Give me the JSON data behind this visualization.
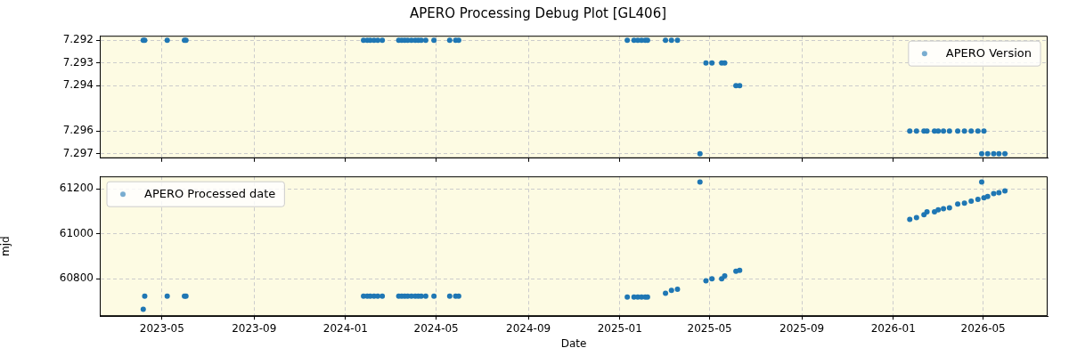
{
  "chart_data": [
    {
      "type": "scatter",
      "title": "APERO Processing Debug Plot [GL406]",
      "x": [
        "2023-04-06",
        "2023-04-08",
        "2023-05-08",
        "2023-05-31",
        "2023-06-02",
        "2024-01-25",
        "2024-01-30",
        "2024-02-03",
        "2024-02-08",
        "2024-02-13",
        "2024-02-19",
        "2024-03-12",
        "2024-03-16",
        "2024-03-20",
        "2024-03-24",
        "2024-03-29",
        "2024-04-03",
        "2024-04-07",
        "2024-04-11",
        "2024-04-17",
        "2024-04-28",
        "2024-05-19",
        "2024-05-27",
        "2024-05-31",
        "2025-01-11",
        "2025-01-20",
        "2025-01-25",
        "2025-01-30",
        "2025-02-04",
        "2025-02-07",
        "2025-03-03",
        "2025-03-11",
        "2025-03-19",
        "2025-04-18",
        "2025-04-26",
        "2025-05-04",
        "2025-05-17",
        "2025-05-21",
        "2025-06-05",
        "2025-06-10",
        "2026-01-23",
        "2026-02-01",
        "2026-02-11",
        "2026-02-15",
        "2026-02-25",
        "2026-03-02",
        "2026-03-09",
        "2026-03-17",
        "2026-03-28",
        "2026-04-06",
        "2026-04-15",
        "2026-04-24",
        "2026-05-02",
        "2026-04-29",
        "2026-05-07",
        "2026-05-15",
        "2026-05-22",
        "2026-05-30"
      ],
      "series": [
        {
          "name": "APERO Version",
          "color": "#1f77b4",
          "values": [
            7.292,
            7.292,
            7.292,
            7.292,
            7.292,
            7.292,
            7.292,
            7.292,
            7.292,
            7.292,
            7.292,
            7.292,
            7.292,
            7.292,
            7.292,
            7.292,
            7.292,
            7.292,
            7.292,
            7.292,
            7.292,
            7.292,
            7.292,
            7.292,
            7.292,
            7.292,
            7.292,
            7.292,
            7.292,
            7.292,
            7.292,
            7.292,
            7.292,
            7.297,
            7.293,
            7.293,
            7.293,
            7.293,
            7.294,
            7.294,
            7.296,
            7.296,
            7.296,
            7.296,
            7.296,
            7.296,
            7.296,
            7.296,
            7.296,
            7.296,
            7.296,
            7.296,
            7.296,
            7.297,
            7.297,
            7.297,
            7.297,
            7.297
          ]
        }
      ],
      "ylim": [
        7.2972,
        7.2918
      ],
      "yticks": [
        7.292,
        7.293,
        7.294,
        7.296,
        7.297
      ],
      "xlim": [
        "2023-02-07",
        "2026-07-26"
      ],
      "xticks": [
        "2023-05",
        "2023-09",
        "2024-01",
        "2024-05",
        "2024-09",
        "2025-01",
        "2025-05",
        "2025-09",
        "2026-01",
        "2026-05"
      ],
      "tick_labels": "y",
      "grid": true,
      "legend": "top right",
      "marker": "circle"
    },
    {
      "type": "scatter",
      "xlabel": "Date",
      "ylabel": "mjd",
      "x": [
        "2023-04-06",
        "2023-04-08",
        "2023-05-08",
        "2023-05-31",
        "2023-06-02",
        "2024-01-25",
        "2024-01-30",
        "2024-02-03",
        "2024-02-08",
        "2024-02-13",
        "2024-02-19",
        "2024-03-12",
        "2024-03-16",
        "2024-03-20",
        "2024-03-24",
        "2024-03-29",
        "2024-04-03",
        "2024-04-07",
        "2024-04-11",
        "2024-04-17",
        "2024-04-28",
        "2024-05-19",
        "2024-05-27",
        "2024-05-31",
        "2025-01-11",
        "2025-01-20",
        "2025-01-25",
        "2025-01-30",
        "2025-02-04",
        "2025-02-07",
        "2025-03-03",
        "2025-03-11",
        "2025-03-19",
        "2025-04-18",
        "2025-04-26",
        "2025-05-04",
        "2025-05-17",
        "2025-05-21",
        "2025-06-05",
        "2025-06-10",
        "2026-01-23",
        "2026-02-01",
        "2026-02-11",
        "2026-02-15",
        "2026-02-25",
        "2026-03-02",
        "2026-03-09",
        "2026-03-17",
        "2026-03-28",
        "2026-04-06",
        "2026-04-15",
        "2026-04-24",
        "2026-05-02",
        "2026-04-29",
        "2026-05-07",
        "2026-05-15",
        "2026-05-22",
        "2026-05-30"
      ],
      "series": [
        {
          "name": "APERO Processed date",
          "color": "#1f77b4",
          "values": [
            60664,
            60723,
            60723,
            60723,
            60723,
            60723,
            60723,
            60723,
            60723,
            60723,
            60723,
            60723,
            60723,
            60723,
            60723,
            60723,
            60723,
            60723,
            60723,
            60723,
            60723,
            60723,
            60723,
            60723,
            60719,
            60719,
            60719,
            60719,
            60719,
            60719,
            60736,
            60749,
            60753,
            61230,
            60791,
            60800,
            60800,
            60813,
            60834,
            60838,
            61064,
            61072,
            61085,
            61098,
            61098,
            61106,
            61111,
            61115,
            61132,
            61136,
            61145,
            61153,
            61160,
            61230,
            61166,
            61179,
            61183,
            61191
          ]
        }
      ],
      "ylim": [
        60634,
        61255
      ],
      "yticks": [
        60800,
        61000,
        61200
      ],
      "xlim": [
        "2023-02-07",
        "2026-07-26"
      ],
      "xticks": [
        "2023-05",
        "2023-09",
        "2024-01",
        "2024-05",
        "2024-09",
        "2025-01",
        "2025-05",
        "2025-09",
        "2026-01",
        "2026-05"
      ],
      "grid": true,
      "legend": "top left",
      "marker": "circle"
    }
  ]
}
